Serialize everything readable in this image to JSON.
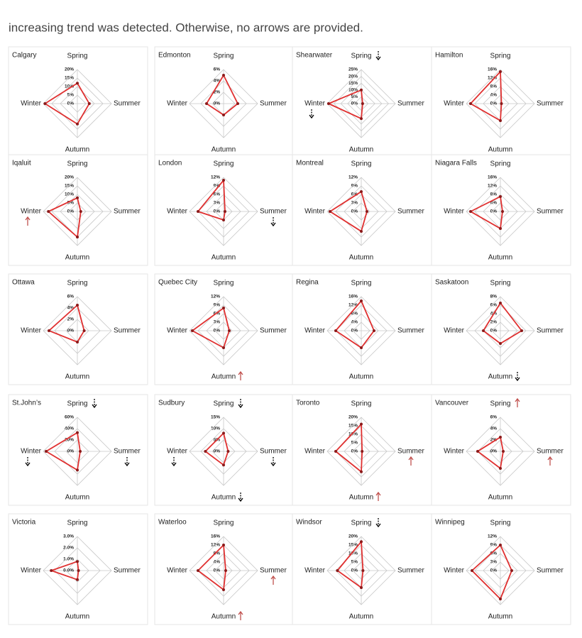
{
  "caption": "increasing trend was detected. Otherwise, no arrows are provided.",
  "chart_data": [
    {
      "type": "radar",
      "title": "Calgary",
      "categories": [
        "Spring",
        "Summer",
        "Autumn",
        "Winter"
      ],
      "values": [
        12,
        7,
        12,
        19
      ],
      "color": "#e03030",
      "rlim": [
        0,
        20
      ],
      "rticks": [
        {
          "value": 0,
          "label": "0%"
        },
        {
          "value": 5,
          "label": "5%"
        },
        {
          "value": 10,
          "label": "10%"
        },
        {
          "value": 15,
          "label": "15%"
        },
        {
          "value": 20,
          "label": "20%"
        }
      ],
      "arrows": []
    },
    {
      "type": "radar",
      "title": "Edmonton",
      "categories": [
        "Spring",
        "Summer",
        "Autumn",
        "Winter"
      ],
      "values": [
        5,
        2.5,
        2,
        3
      ],
      "color": "#e03030",
      "rlim": [
        0,
        6
      ],
      "rticks": [
        {
          "value": 0,
          "label": "0%"
        },
        {
          "value": 2,
          "label": "2%"
        },
        {
          "value": 4,
          "label": "4%"
        },
        {
          "value": 6,
          "label": "6%"
        }
      ],
      "arrows": []
    },
    {
      "type": "radar",
      "title": "Shearwater",
      "categories": [
        "Spring",
        "Summer",
        "Autumn",
        "Winter"
      ],
      "values": [
        10,
        1,
        11,
        24
      ],
      "color": "#e03030",
      "rlim": [
        0,
        25
      ],
      "rticks": [
        {
          "value": 0,
          "label": "0%"
        },
        {
          "value": 5,
          "label": "5%"
        },
        {
          "value": 10,
          "label": "10%"
        },
        {
          "value": 15,
          "label": "15%"
        },
        {
          "value": 20,
          "label": "20%"
        },
        {
          "value": 25,
          "label": "25%"
        }
      ],
      "arrows": [
        {
          "category": 0,
          "direction": "down",
          "color": "#000000"
        },
        {
          "category": 3,
          "direction": "down",
          "color": "#000000"
        }
      ]
    },
    {
      "type": "radar",
      "title": "Hamilton",
      "categories": [
        "Spring",
        "Summer",
        "Autumn",
        "Winter"
      ],
      "values": [
        15,
        0.5,
        8,
        14
      ],
      "color": "#e03030",
      "rlim": [
        0,
        16
      ],
      "rticks": [
        {
          "value": 0,
          "label": "0%"
        },
        {
          "value": 4,
          "label": "4%"
        },
        {
          "value": 8,
          "label": "8%"
        },
        {
          "value": 12,
          "label": "12%"
        },
        {
          "value": 16,
          "label": "16%"
        }
      ],
      "arrows": []
    },
    {
      "type": "radar",
      "title": "Iqaluit",
      "categories": [
        "Spring",
        "Summer",
        "Autumn",
        "Winter"
      ],
      "values": [
        8,
        2,
        15,
        17
      ],
      "color": "#e03030",
      "rlim": [
        0,
        20
      ],
      "rticks": [
        {
          "value": 0,
          "label": "0%"
        },
        {
          "value": 5,
          "label": "5%"
        },
        {
          "value": 10,
          "label": "10%"
        },
        {
          "value": 15,
          "label": "15%"
        },
        {
          "value": 20,
          "label": "20%"
        }
      ],
      "arrows": [
        {
          "category": 3,
          "direction": "up",
          "color": "#c0504d"
        }
      ]
    },
    {
      "type": "radar",
      "title": "London",
      "categories": [
        "Spring",
        "Summer",
        "Autumn",
        "Winter"
      ],
      "values": [
        11,
        0.5,
        3,
        9
      ],
      "color": "#e03030",
      "rlim": [
        0,
        12
      ],
      "rticks": [
        {
          "value": 0,
          "label": "0%"
        },
        {
          "value": 3,
          "label": "3%"
        },
        {
          "value": 6,
          "label": "6%"
        },
        {
          "value": 9,
          "label": "9%"
        },
        {
          "value": 12,
          "label": "12%"
        }
      ],
      "arrows": [
        {
          "category": 1,
          "direction": "down",
          "color": "#000000"
        }
      ]
    },
    {
      "type": "radar",
      "title": "Montreal",
      "categories": [
        "Spring",
        "Summer",
        "Autumn",
        "Winter"
      ],
      "values": [
        7,
        2,
        7,
        11
      ],
      "color": "#e03030",
      "rlim": [
        0,
        12
      ],
      "rticks": [
        {
          "value": 0,
          "label": "0%"
        },
        {
          "value": 3,
          "label": "3%"
        },
        {
          "value": 6,
          "label": "6%"
        },
        {
          "value": 9,
          "label": "9%"
        },
        {
          "value": 12,
          "label": "12%"
        }
      ],
      "arrows": []
    },
    {
      "type": "radar",
      "title": "Niagara Falls",
      "categories": [
        "Spring",
        "Summer",
        "Autumn",
        "Winter"
      ],
      "values": [
        7,
        1,
        8,
        14
      ],
      "color": "#e03030",
      "rlim": [
        0,
        16
      ],
      "rticks": [
        {
          "value": 0,
          "label": "0%"
        },
        {
          "value": 4,
          "label": "4%"
        },
        {
          "value": 8,
          "label": "8%"
        },
        {
          "value": 12,
          "label": "12%"
        },
        {
          "value": 16,
          "label": "16%"
        }
      ],
      "arrows": []
    },
    {
      "type": "radar",
      "title": "Ottawa",
      "categories": [
        "Spring",
        "Summer",
        "Autumn",
        "Winter"
      ],
      "values": [
        4.5,
        1.2,
        2,
        5
      ],
      "color": "#e03030",
      "rlim": [
        0,
        6
      ],
      "rticks": [
        {
          "value": 0,
          "label": "0%"
        },
        {
          "value": 2,
          "label": "2%"
        },
        {
          "value": 4,
          "label": "4%"
        },
        {
          "value": 6,
          "label": "6%"
        }
      ],
      "arrows": []
    },
    {
      "type": "radar",
      "title": "Quebec City",
      "categories": [
        "Spring",
        "Summer",
        "Autumn",
        "Winter"
      ],
      "values": [
        8,
        2,
        6,
        11
      ],
      "color": "#e03030",
      "rlim": [
        0,
        12
      ],
      "rticks": [
        {
          "value": 0,
          "label": "0%"
        },
        {
          "value": 3,
          "label": "3%"
        },
        {
          "value": 6,
          "label": "6%"
        },
        {
          "value": 9,
          "label": "9%"
        },
        {
          "value": 12,
          "label": "12%"
        }
      ],
      "arrows": [
        {
          "category": 2,
          "direction": "up",
          "color": "#c0504d"
        }
      ]
    },
    {
      "type": "radar",
      "title": "Regina",
      "categories": [
        "Spring",
        "Summer",
        "Autumn",
        "Winter"
      ],
      "values": [
        14,
        6,
        8,
        12
      ],
      "color": "#e03030",
      "rlim": [
        0,
        16
      ],
      "rticks": [
        {
          "value": 0,
          "label": "0%"
        },
        {
          "value": 4,
          "label": "4%"
        },
        {
          "value": 8,
          "label": "8%"
        },
        {
          "value": 12,
          "label": "12%"
        },
        {
          "value": 16,
          "label": "16%"
        }
      ],
      "arrows": []
    },
    {
      "type": "radar",
      "title": "Saskatoon",
      "categories": [
        "Spring",
        "Summer",
        "Autumn",
        "Winter"
      ],
      "values": [
        6.5,
        5,
        3,
        4
      ],
      "color": "#e03030",
      "rlim": [
        0,
        8
      ],
      "rticks": [
        {
          "value": 0,
          "label": "0%"
        },
        {
          "value": 2,
          "label": "2%"
        },
        {
          "value": 4,
          "label": "4%"
        },
        {
          "value": 6,
          "label": "6%"
        },
        {
          "value": 8,
          "label": "8%"
        }
      ],
      "arrows": [
        {
          "category": 2,
          "direction": "down",
          "color": "#000000"
        }
      ]
    },
    {
      "type": "radar",
      "title": "St.John’s",
      "categories": [
        "Spring",
        "Summer",
        "Autumn",
        "Winter"
      ],
      "values": [
        33,
        5,
        33,
        55
      ],
      "color": "#e03030",
      "rlim": [
        0,
        60
      ],
      "rticks": [
        {
          "value": 0,
          "label": "0%"
        },
        {
          "value": 20,
          "label": "20%"
        },
        {
          "value": 40,
          "label": "40%"
        },
        {
          "value": 60,
          "label": "60%"
        }
      ],
      "arrows": [
        {
          "category": 0,
          "direction": "down",
          "color": "#000000"
        },
        {
          "category": 1,
          "direction": "down",
          "color": "#000000"
        },
        {
          "category": 3,
          "direction": "down",
          "color": "#000000"
        }
      ]
    },
    {
      "type": "radar",
      "title": "Sudbury",
      "categories": [
        "Spring",
        "Summer",
        "Autumn",
        "Winter"
      ],
      "values": [
        8,
        2,
        6,
        8
      ],
      "color": "#e03030",
      "rlim": [
        0,
        15
      ],
      "rticks": [
        {
          "value": 0,
          "label": "0%"
        },
        {
          "value": 5,
          "label": "5%"
        },
        {
          "value": 10,
          "label": "10%"
        },
        {
          "value": 15,
          "label": "15%"
        }
      ],
      "arrows": [
        {
          "category": 0,
          "direction": "down",
          "color": "#000000"
        },
        {
          "category": 1,
          "direction": "down",
          "color": "#000000"
        },
        {
          "category": 2,
          "direction": "down",
          "color": "#000000"
        },
        {
          "category": 3,
          "direction": "down",
          "color": "#000000"
        }
      ]
    },
    {
      "type": "radar",
      "title": "Toronto",
      "categories": [
        "Spring",
        "Summer",
        "Autumn",
        "Winter"
      ],
      "values": [
        16,
        0.5,
        12,
        15
      ],
      "color": "#e03030",
      "rlim": [
        0,
        20
      ],
      "rticks": [
        {
          "value": 0,
          "label": "0%"
        },
        {
          "value": 5,
          "label": "5%"
        },
        {
          "value": 10,
          "label": "10%"
        },
        {
          "value": 15,
          "label": "15%"
        },
        {
          "value": 20,
          "label": "20%"
        }
      ],
      "arrows": [
        {
          "category": 1,
          "direction": "up",
          "color": "#c0504d"
        },
        {
          "category": 2,
          "direction": "up",
          "color": "#c0504d"
        }
      ]
    },
    {
      "type": "radar",
      "title": "Vancouver",
      "categories": [
        "Spring",
        "Summer",
        "Autumn",
        "Winter"
      ],
      "values": [
        2.5,
        0.5,
        3,
        4
      ],
      "color": "#e03030",
      "rlim": [
        0,
        6
      ],
      "rticks": [
        {
          "value": 0,
          "label": "0%"
        },
        {
          "value": 2,
          "label": "2%"
        },
        {
          "value": 4,
          "label": "4%"
        },
        {
          "value": 6,
          "label": "6%"
        }
      ],
      "arrows": [
        {
          "category": 0,
          "direction": "up",
          "color": "#c0504d"
        },
        {
          "category": 1,
          "direction": "up",
          "color": "#c0504d"
        }
      ]
    },
    {
      "type": "radar",
      "title": "Victoria",
      "categories": [
        "Spring",
        "Summer",
        "Autumn",
        "Winter"
      ],
      "values": [
        0.8,
        0.1,
        0.8,
        2.3
      ],
      "color": "#e03030",
      "rlim": [
        0,
        3
      ],
      "rticks": [
        {
          "value": 0,
          "label": "0.0%"
        },
        {
          "value": 1,
          "label": "1.0%"
        },
        {
          "value": 2,
          "label": "2.0%"
        },
        {
          "value": 3,
          "label": "3.0%"
        }
      ],
      "arrows": []
    },
    {
      "type": "radar",
      "title": "Waterloo",
      "categories": [
        "Spring",
        "Summer",
        "Autumn",
        "Winter"
      ],
      "values": [
        12,
        1,
        9,
        12
      ],
      "color": "#e03030",
      "rlim": [
        0,
        16
      ],
      "rticks": [
        {
          "value": 0,
          "label": "0%"
        },
        {
          "value": 4,
          "label": "4%"
        },
        {
          "value": 8,
          "label": "8%"
        },
        {
          "value": 12,
          "label": "12%"
        },
        {
          "value": 16,
          "label": "16%"
        }
      ],
      "arrows": [
        {
          "category": 1,
          "direction": "up",
          "color": "#c0504d"
        },
        {
          "category": 2,
          "direction": "up",
          "color": "#c0504d"
        }
      ]
    },
    {
      "type": "radar",
      "title": "Windsor",
      "categories": [
        "Spring",
        "Summer",
        "Autumn",
        "Winter"
      ],
      "values": [
        17,
        1,
        10,
        14
      ],
      "color": "#e03030",
      "rlim": [
        0,
        20
      ],
      "rticks": [
        {
          "value": 0,
          "label": "0%"
        },
        {
          "value": 5,
          "label": "5%"
        },
        {
          "value": 10,
          "label": "10%"
        },
        {
          "value": 15,
          "label": "15%"
        },
        {
          "value": 20,
          "label": "20%"
        }
      ],
      "arrows": [
        {
          "category": 0,
          "direction": "down",
          "color": "#000000"
        }
      ]
    },
    {
      "type": "radar",
      "title": "Winnipeg",
      "categories": [
        "Spring",
        "Summer",
        "Autumn",
        "Winter"
      ],
      "values": [
        9,
        4,
        10,
        10
      ],
      "color": "#e03030",
      "rlim": [
        0,
        12
      ],
      "rticks": [
        {
          "value": 0,
          "label": "0%"
        },
        {
          "value": 3,
          "label": "3%"
        },
        {
          "value": 6,
          "label": "6%"
        },
        {
          "value": 9,
          "label": "9%"
        },
        {
          "value": 12,
          "label": "12%"
        }
      ],
      "arrows": []
    }
  ]
}
